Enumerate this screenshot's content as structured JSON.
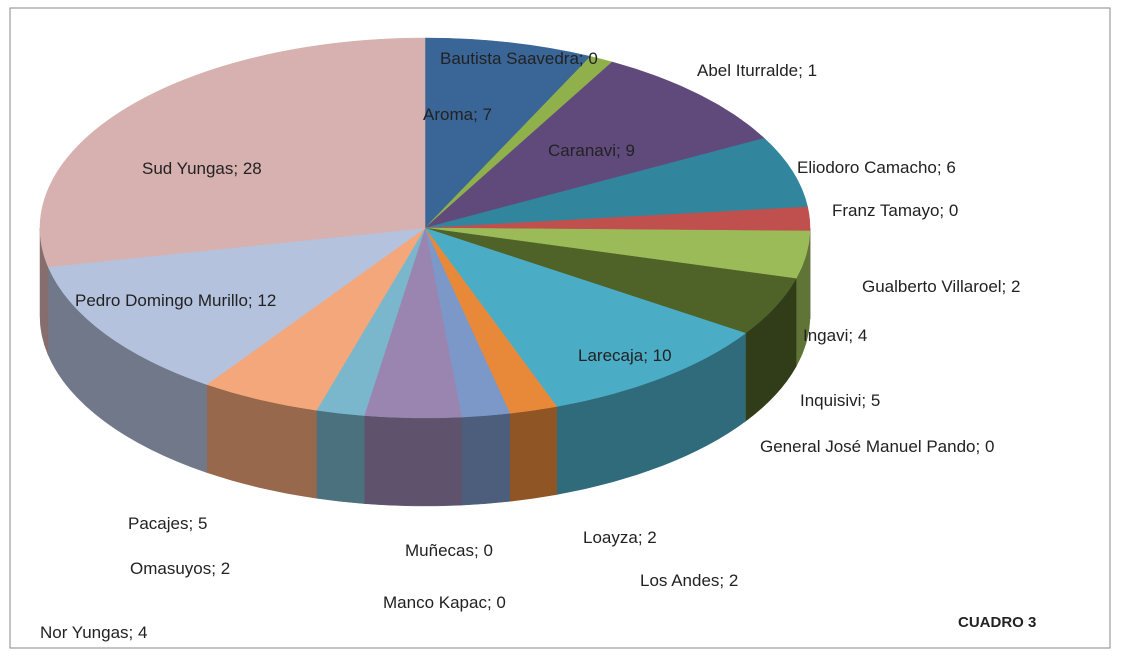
{
  "chart_data": {
    "type": "pie3d",
    "categories": [
      "Aroma",
      "Bautista Saavedra",
      "Abel Iturralde",
      "Caranavi",
      "Eliodoro Camacho",
      "Franz Tamayo",
      "Gualberto Villaroel",
      "Ingavi",
      "Inquisivi",
      "General José Manuel Pando",
      "Larecaja",
      "Loayza",
      "Los Andes",
      "Manco Kapac",
      "Muñecas",
      "Nor Yungas",
      "Omasuyos",
      "Pacajes",
      "Pedro Domingo Murillo",
      "Sud Yungas"
    ],
    "values": [
      7,
      0,
      1,
      9,
      6,
      0,
      2,
      4,
      5,
      0,
      10,
      2,
      2,
      0,
      0,
      4,
      2,
      5,
      12,
      28
    ],
    "colors": [
      "#3a6697",
      "#6a8e3c",
      "#8fb04a",
      "#604a7b",
      "#31859c",
      "#4472c4",
      "#c0504d",
      "#9bbb59",
      "#4f6228",
      "#2c7d95",
      "#4bacc6",
      "#e8893a",
      "#7b98c8",
      "#3d5a80",
      "#6b5b95",
      "#9a85b0",
      "#7ab6cc",
      "#f3a77a",
      "#b4c2dd",
      "#d7b1b0"
    ],
    "separator": "; ",
    "annotation": "CUADRO 3"
  }
}
